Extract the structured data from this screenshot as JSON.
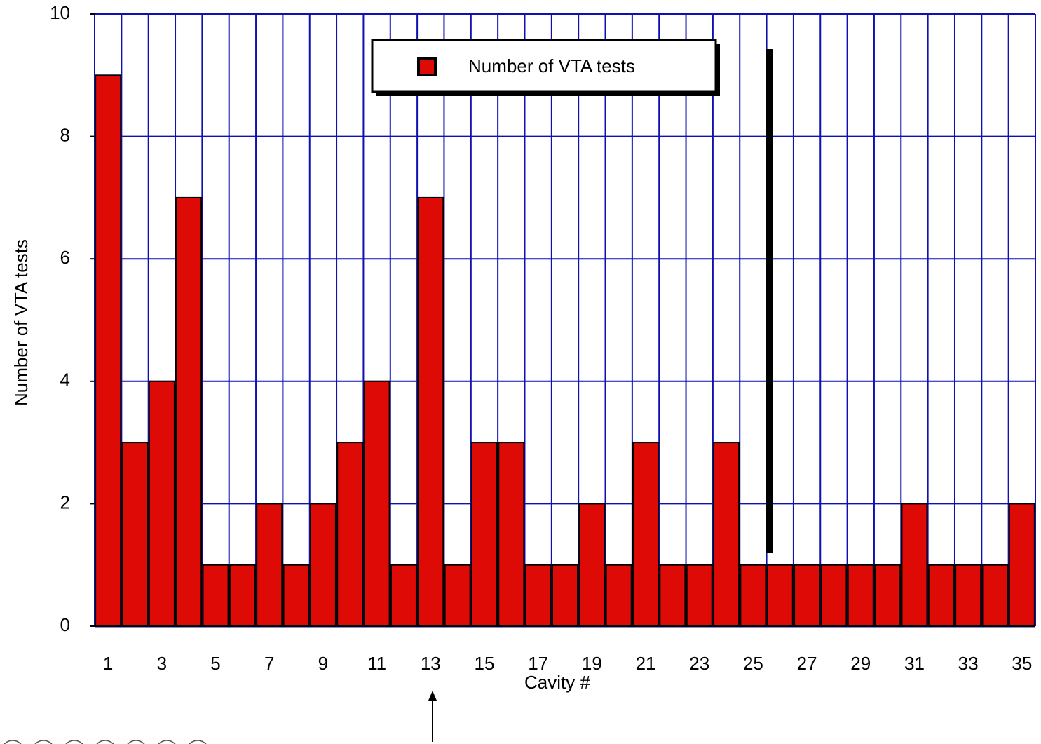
{
  "chart_data": {
    "type": "bar",
    "xlabel": "Cavity #",
    "ylabel": "Number of VTA tests",
    "categories": [
      1,
      null,
      3,
      null,
      5,
      null,
      7,
      null,
      9,
      null,
      11,
      null,
      13,
      null,
      15,
      null,
      17,
      null,
      19,
      null,
      21,
      null,
      23,
      null,
      25,
      null,
      27,
      null,
      29,
      null,
      31,
      null,
      33,
      null,
      35
    ],
    "series": [
      {
        "name": "Number of VTA tests",
        "color": "#dd0a05",
        "values": [
          9,
          3,
          4,
          7,
          1,
          1,
          2,
          1,
          2,
          3,
          4,
          1,
          7,
          1,
          3,
          3,
          1,
          1,
          2,
          1,
          3,
          1,
          1,
          3,
          1,
          1,
          1,
          1,
          1,
          1,
          2,
          1,
          1,
          1,
          2
        ]
      }
    ],
    "ylim": [
      0,
      10
    ],
    "yticks": [
      0,
      2,
      4,
      6,
      8,
      10
    ],
    "grid": true
  }
}
